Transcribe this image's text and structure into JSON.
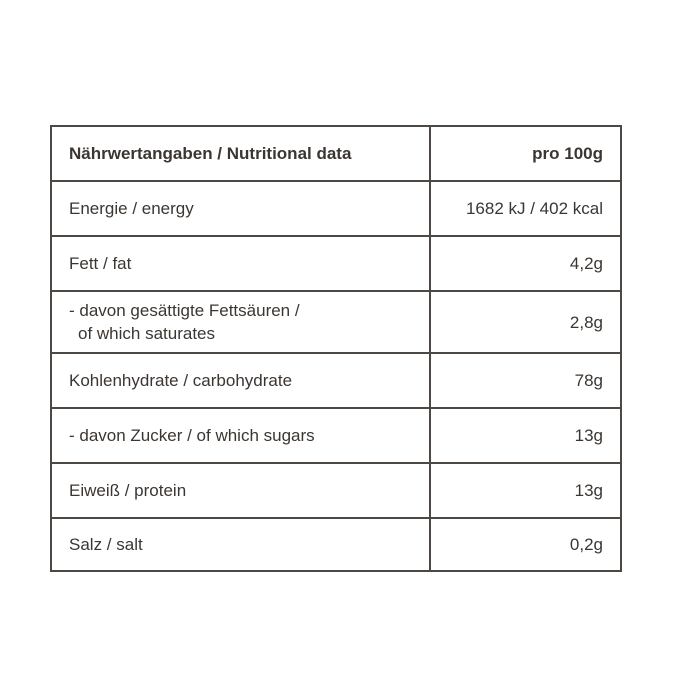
{
  "header": {
    "label": "Nährwertangaben / Nutritional data",
    "value": "pro 100g"
  },
  "rows": [
    {
      "label": "Energie / energy",
      "value": "1682 kJ / 402 kcal"
    },
    {
      "label": "Fett / fat",
      "value": "4,2g"
    },
    {
      "label": "- davon gesättigte Fettsäuren /",
      "label2": "of which saturates",
      "value": "2,8g"
    },
    {
      "label": "Kohlenhydrate / carbohydrate",
      "value": "78g"
    },
    {
      "label": "- davon Zucker / of which sugars",
      "value": "13g"
    },
    {
      "label": "Eiweiß / protein",
      "value": "13g"
    },
    {
      "label": "Salz / salt",
      "value": "0,2g"
    }
  ]
}
